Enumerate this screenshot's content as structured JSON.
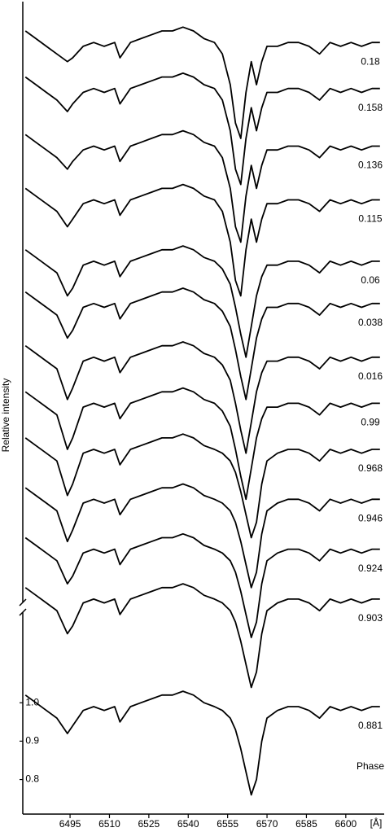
{
  "chart_data": {
    "type": "line",
    "y_label": "Relative intensity",
    "x_label": "[Å]",
    "annotation": "Phase",
    "x": [
      6478,
      6482,
      6486,
      6490,
      6494,
      6496,
      6500,
      6504,
      6508,
      6512,
      6514,
      6518,
      6522,
      6526,
      6530,
      6534,
      6538,
      6542,
      6546,
      6550,
      6553,
      6556,
      6558,
      6560,
      6562,
      6564,
      6566,
      6568,
      6570,
      6574,
      6578,
      6582,
      6586,
      6590,
      6594,
      6598,
      6602,
      6606,
      6610,
      6613
    ],
    "xlim": [
      6477,
      6614
    ],
    "xticks": [
      6495,
      6510,
      6525,
      6540,
      6555,
      6570,
      6585,
      6600
    ],
    "ylim": [
      0.71,
      2.82
    ],
    "yticks": [
      0.8,
      0.9,
      {
        "value": 1,
        "label": "1.0"
      }
    ],
    "series": [
      {
        "name": "0.18",
        "color": "#000000",
        "values": [
          2.75,
          2.73,
          2.71,
          2.69,
          2.67,
          2.68,
          2.71,
          2.72,
          2.71,
          2.72,
          2.68,
          2.72,
          2.73,
          2.74,
          2.75,
          2.75,
          2.76,
          2.75,
          2.73,
          2.72,
          2.69,
          2.61,
          2.51,
          2.47,
          2.59,
          2.67,
          2.61,
          2.67,
          2.71,
          2.71,
          2.72,
          2.72,
          2.71,
          2.69,
          2.72,
          2.71,
          2.72,
          2.71,
          2.72,
          2.72
        ]
      },
      {
        "name": "0.158",
        "color": "#000000",
        "values": [
          2.63,
          2.61,
          2.59,
          2.57,
          2.54,
          2.56,
          2.59,
          2.6,
          2.59,
          2.6,
          2.56,
          2.6,
          2.61,
          2.62,
          2.63,
          2.63,
          2.64,
          2.63,
          2.61,
          2.6,
          2.57,
          2.49,
          2.39,
          2.35,
          2.47,
          2.55,
          2.49,
          2.55,
          2.59,
          2.59,
          2.6,
          2.6,
          2.59,
          2.57,
          2.6,
          2.59,
          2.6,
          2.59,
          2.6,
          2.6
        ]
      },
      {
        "name": "0.136",
        "color": "#000000",
        "values": [
          2.48,
          2.46,
          2.44,
          2.42,
          2.39,
          2.41,
          2.44,
          2.45,
          2.44,
          2.45,
          2.41,
          2.45,
          2.46,
          2.47,
          2.48,
          2.48,
          2.49,
          2.48,
          2.46,
          2.45,
          2.42,
          2.34,
          2.24,
          2.2,
          2.32,
          2.4,
          2.34,
          2.4,
          2.44,
          2.44,
          2.45,
          2.45,
          2.44,
          2.42,
          2.45,
          2.44,
          2.45,
          2.44,
          2.45,
          2.45
        ]
      },
      {
        "name": "0.115",
        "color": "#000000",
        "values": [
          2.34,
          2.32,
          2.3,
          2.28,
          2.24,
          2.26,
          2.3,
          2.31,
          2.3,
          2.31,
          2.27,
          2.31,
          2.32,
          2.33,
          2.34,
          2.34,
          2.35,
          2.34,
          2.32,
          2.31,
          2.28,
          2.2,
          2.1,
          2.06,
          2.18,
          2.26,
          2.2,
          2.26,
          2.3,
          2.3,
          2.31,
          2.31,
          2.3,
          2.28,
          2.31,
          2.3,
          2.31,
          2.3,
          2.31,
          2.31
        ]
      },
      {
        "name": "0.06",
        "color": "#000000",
        "values": [
          2.18,
          2.16,
          2.14,
          2.12,
          2.06,
          2.08,
          2.14,
          2.15,
          2.14,
          2.15,
          2.11,
          2.15,
          2.16,
          2.17,
          2.18,
          2.18,
          2.19,
          2.18,
          2.16,
          2.15,
          2.13,
          2.09,
          2.03,
          1.96,
          1.9,
          1.98,
          2.06,
          2.11,
          2.14,
          2.14,
          2.15,
          2.15,
          2.14,
          2.12,
          2.15,
          2.14,
          2.15,
          2.14,
          2.15,
          2.15
        ]
      },
      {
        "name": "0.038",
        "color": "#000000",
        "values": [
          2.07,
          2.05,
          2.03,
          2.01,
          1.95,
          1.97,
          2.03,
          2.04,
          2.03,
          2.04,
          2.0,
          2.04,
          2.05,
          2.06,
          2.07,
          2.07,
          2.08,
          2.07,
          2.05,
          2.04,
          2.02,
          1.98,
          1.92,
          1.85,
          1.79,
          1.87,
          1.95,
          2.0,
          2.03,
          2.03,
          2.04,
          2.04,
          2.03,
          2.01,
          2.04,
          2.03,
          2.04,
          2.03,
          2.04,
          2.04
        ]
      },
      {
        "name": "0.016",
        "color": "#000000",
        "values": [
          1.93,
          1.91,
          1.89,
          1.87,
          1.79,
          1.82,
          1.89,
          1.9,
          1.89,
          1.9,
          1.86,
          1.9,
          1.91,
          1.92,
          1.93,
          1.93,
          1.94,
          1.93,
          1.91,
          1.9,
          1.88,
          1.84,
          1.78,
          1.71,
          1.65,
          1.73,
          1.81,
          1.86,
          1.89,
          1.89,
          1.9,
          1.9,
          1.89,
          1.87,
          1.9,
          1.89,
          1.9,
          1.89,
          1.9,
          1.9
        ]
      },
      {
        "name": "0.99",
        "color": "#000000",
        "values": [
          1.81,
          1.79,
          1.77,
          1.75,
          1.66,
          1.69,
          1.77,
          1.78,
          1.77,
          1.78,
          1.74,
          1.78,
          1.79,
          1.8,
          1.81,
          1.81,
          1.82,
          1.81,
          1.79,
          1.78,
          1.76,
          1.72,
          1.66,
          1.59,
          1.53,
          1.61,
          1.69,
          1.74,
          1.77,
          1.77,
          1.78,
          1.78,
          1.77,
          1.75,
          1.78,
          1.77,
          1.78,
          1.77,
          1.78,
          1.78
        ]
      },
      {
        "name": "0.968",
        "color": "#000000",
        "values": [
          1.69,
          1.67,
          1.65,
          1.63,
          1.54,
          1.57,
          1.65,
          1.66,
          1.65,
          1.66,
          1.62,
          1.66,
          1.67,
          1.68,
          1.69,
          1.69,
          1.7,
          1.69,
          1.67,
          1.66,
          1.65,
          1.63,
          1.6,
          1.55,
          1.49,
          1.43,
          1.47,
          1.57,
          1.63,
          1.65,
          1.66,
          1.66,
          1.65,
          1.63,
          1.66,
          1.65,
          1.66,
          1.65,
          1.66,
          1.66
        ]
      },
      {
        "name": "0.946",
        "color": "#000000",
        "values": [
          1.56,
          1.54,
          1.52,
          1.5,
          1.42,
          1.45,
          1.52,
          1.53,
          1.52,
          1.53,
          1.49,
          1.53,
          1.54,
          1.55,
          1.56,
          1.56,
          1.57,
          1.56,
          1.54,
          1.53,
          1.52,
          1.5,
          1.47,
          1.42,
          1.36,
          1.3,
          1.34,
          1.44,
          1.5,
          1.52,
          1.53,
          1.53,
          1.52,
          1.5,
          1.53,
          1.52,
          1.53,
          1.52,
          1.53,
          1.53
        ]
      },
      {
        "name": "0.924",
        "color": "#000000",
        "values": [
          1.43,
          1.41,
          1.39,
          1.37,
          1.31,
          1.33,
          1.39,
          1.4,
          1.39,
          1.4,
          1.36,
          1.4,
          1.41,
          1.42,
          1.43,
          1.43,
          1.44,
          1.43,
          1.41,
          1.4,
          1.39,
          1.37,
          1.34,
          1.29,
          1.23,
          1.17,
          1.21,
          1.31,
          1.37,
          1.39,
          1.4,
          1.4,
          1.39,
          1.37,
          1.4,
          1.39,
          1.4,
          1.39,
          1.4,
          1.4
        ]
      },
      {
        "name": "0.903",
        "color": "#000000",
        "values": [
          1.3,
          1.28,
          1.26,
          1.24,
          1.18,
          1.2,
          1.26,
          1.27,
          1.26,
          1.27,
          1.23,
          1.27,
          1.28,
          1.29,
          1.3,
          1.3,
          1.31,
          1.3,
          1.28,
          1.27,
          1.26,
          1.24,
          1.21,
          1.16,
          1.1,
          1.04,
          1.08,
          1.18,
          1.24,
          1.26,
          1.27,
          1.27,
          1.26,
          1.24,
          1.27,
          1.26,
          1.27,
          1.26,
          1.27,
          1.27
        ]
      },
      {
        "name": "0.881",
        "color": "#000000",
        "values": [
          1.02,
          1.0,
          0.98,
          0.96,
          0.92,
          0.94,
          0.98,
          0.99,
          0.98,
          0.99,
          0.95,
          0.99,
          1.0,
          1.01,
          1.02,
          1.02,
          1.03,
          1.02,
          1.0,
          0.99,
          0.98,
          0.96,
          0.93,
          0.88,
          0.82,
          0.76,
          0.8,
          0.9,
          0.96,
          0.98,
          0.99,
          0.99,
          0.98,
          0.96,
          0.99,
          0.98,
          0.99,
          0.98,
          0.99,
          0.99
        ]
      }
    ]
  }
}
